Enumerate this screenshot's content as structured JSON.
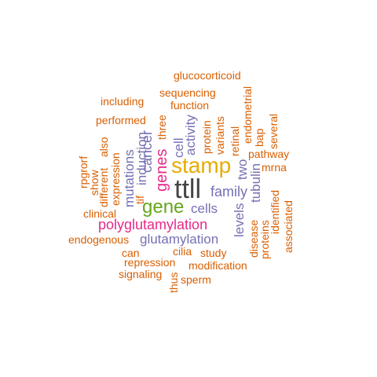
{
  "palette": {
    "orange": "#d95f02",
    "purple": "#7570b3",
    "magenta": "#e7298a",
    "green": "#66a61e",
    "gold": "#e6ab02",
    "gray": "#444444"
  },
  "words": [
    {
      "id": "glucocorticoid",
      "text": "glucocorticoid",
      "color": "orange"
    },
    {
      "id": "sequencing",
      "text": "sequencing",
      "color": "orange"
    },
    {
      "id": "including",
      "text": "including",
      "color": "orange"
    },
    {
      "id": "function",
      "text": "function",
      "color": "orange"
    },
    {
      "id": "performed",
      "text": "performed",
      "color": "orange"
    },
    {
      "id": "retinal",
      "text": "retinal",
      "color": "orange"
    },
    {
      "id": "endometrial",
      "text": "endometrial",
      "color": "orange"
    },
    {
      "id": "three",
      "text": "three",
      "color": "orange"
    },
    {
      "id": "cell",
      "text": "cell",
      "color": "purple"
    },
    {
      "id": "activity",
      "text": "activity",
      "color": "purple"
    },
    {
      "id": "protein",
      "text": "protein",
      "color": "orange"
    },
    {
      "id": "variants",
      "text": "variants",
      "color": "orange"
    },
    {
      "id": "bap",
      "text": "bap",
      "color": "orange"
    },
    {
      "id": "several",
      "text": "several",
      "color": "orange"
    },
    {
      "id": "mutations",
      "text": "mutations",
      "color": "purple"
    },
    {
      "id": "induction",
      "text": "induction",
      "color": "purple"
    },
    {
      "id": "cancer",
      "text": "cancer",
      "color": "purple"
    },
    {
      "id": "also",
      "text": "also",
      "color": "orange"
    },
    {
      "id": "pathway",
      "text": "pathway",
      "color": "orange"
    },
    {
      "id": "rpgrorf",
      "text": "rpgrorf",
      "color": "orange"
    },
    {
      "id": "show",
      "text": "show",
      "color": "orange"
    },
    {
      "id": "different",
      "text": "different",
      "color": "orange"
    },
    {
      "id": "expression",
      "text": "expression",
      "color": "orange"
    },
    {
      "id": "tif",
      "text": "tif",
      "color": "orange"
    },
    {
      "id": "genes",
      "text": "genes",
      "color": "magenta"
    },
    {
      "id": "stamp",
      "text": "stamp",
      "color": "gold"
    },
    {
      "id": "two",
      "text": "two",
      "color": "purple"
    },
    {
      "id": "mrna",
      "text": "mrna",
      "color": "orange"
    },
    {
      "id": "tubulin",
      "text": "tubulin",
      "color": "purple"
    },
    {
      "id": "identified",
      "text": "identified",
      "color": "orange"
    },
    {
      "id": "ttll",
      "text": "ttll",
      "color": "gray"
    },
    {
      "id": "family",
      "text": "family",
      "color": "purple"
    },
    {
      "id": "gene",
      "text": "gene",
      "color": "green"
    },
    {
      "id": "cells",
      "text": "cells",
      "color": "purple"
    },
    {
      "id": "levels",
      "text": "levels",
      "color": "purple"
    },
    {
      "id": "clinical",
      "text": "clinical",
      "color": "orange"
    },
    {
      "id": "disease",
      "text": "disease",
      "color": "orange"
    },
    {
      "id": "associated",
      "text": "associated",
      "color": "orange"
    },
    {
      "id": "polyglutamylation",
      "text": "polyglutamylation",
      "color": "magenta"
    },
    {
      "id": "proteins",
      "text": "proteins",
      "color": "orange"
    },
    {
      "id": "endogenous",
      "text": "endogenous",
      "color": "orange"
    },
    {
      "id": "glutamylation",
      "text": "glutamylation",
      "color": "purple"
    },
    {
      "id": "can",
      "text": "can",
      "color": "orange"
    },
    {
      "id": "cilia",
      "text": "cilia",
      "color": "orange"
    },
    {
      "id": "study",
      "text": "study",
      "color": "orange"
    },
    {
      "id": "repression",
      "text": "repression",
      "color": "orange"
    },
    {
      "id": "modification",
      "text": "modification",
      "color": "orange"
    },
    {
      "id": "signaling",
      "text": "signaling",
      "color": "orange"
    },
    {
      "id": "thus",
      "text": "thus",
      "color": "orange"
    },
    {
      "id": "sperm",
      "text": "sperm",
      "color": "orange"
    }
  ]
}
